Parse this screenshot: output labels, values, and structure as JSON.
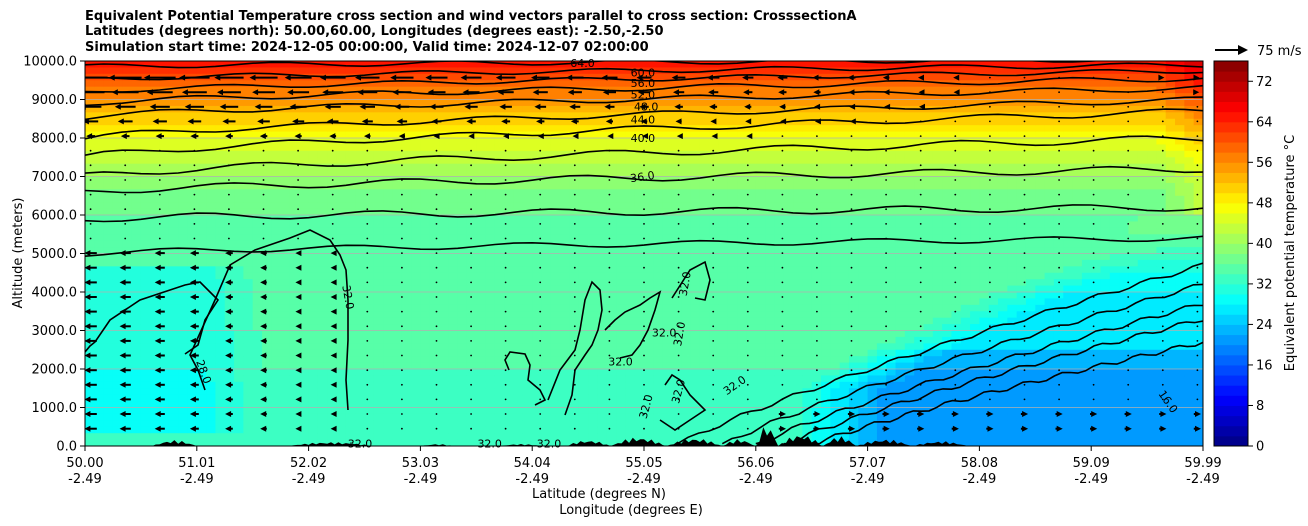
{
  "chart_data": {
    "type": "heatmap",
    "subtype": "filled-contour cross section with wind vectors",
    "title_lines": [
      "Equivalent Potential Temperature cross section and wind vectors parallel to cross section: CrosssectionA",
      "Latitudes (degrees north): 50.00,60.00, Longitudes (degrees east): -2.50,-2.50",
      "Simulation start time: 2024-12-05 00:00:00, Valid time: 2024-12-07 02:00:00"
    ],
    "ylabel": "Altitude (meters)",
    "xlabel_lines": [
      "Latitude (degrees N)",
      "Longitude (degrees E)"
    ],
    "ylim": [
      0,
      10000
    ],
    "y_ticks": [
      "0.0",
      "1000.0",
      "2000.0",
      "3000.0",
      "4000.0",
      "5000.0",
      "6000.0",
      "7000.0",
      "8000.0",
      "9000.0",
      "10000.0"
    ],
    "x_ticks": [
      {
        "lat": "50.00",
        "lon": "-2.49"
      },
      {
        "lat": "51.01",
        "lon": "-2.49"
      },
      {
        "lat": "52.02",
        "lon": "-2.49"
      },
      {
        "lat": "53.03",
        "lon": "-2.49"
      },
      {
        "lat": "54.04",
        "lon": "-2.49"
      },
      {
        "lat": "55.05",
        "lon": "-2.49"
      },
      {
        "lat": "56.06",
        "lon": "-2.49"
      },
      {
        "lat": "57.07",
        "lon": "-2.49"
      },
      {
        "lat": "58.08",
        "lon": "-2.49"
      },
      {
        "lat": "59.09",
        "lon": "-2.49"
      },
      {
        "lat": "59.99",
        "lon": "-2.49"
      }
    ],
    "grid": "horizontal",
    "colorbar": {
      "label": "Equivalent potential temperature $^\\circ$C",
      "label_display": "Equivalent potential temperature °C",
      "range": [
        0,
        76
      ],
      "step": 2,
      "ticks": [
        "0",
        "8",
        "16",
        "24",
        "32",
        "40",
        "48",
        "56",
        "64",
        "72"
      ],
      "colormap": "jet"
    },
    "quiver_key": {
      "label": "75 m/s"
    },
    "contour_levels": [
      32,
      36,
      40,
      44,
      48,
      52,
      56,
      60,
      64
    ],
    "contour_labels": [
      "64.0",
      "60.0",
      "56.0",
      "52.0",
      "48.0",
      "44.0",
      "40.0",
      "36.0",
      "32.0",
      "28.0",
      "16.0"
    ]
  }
}
